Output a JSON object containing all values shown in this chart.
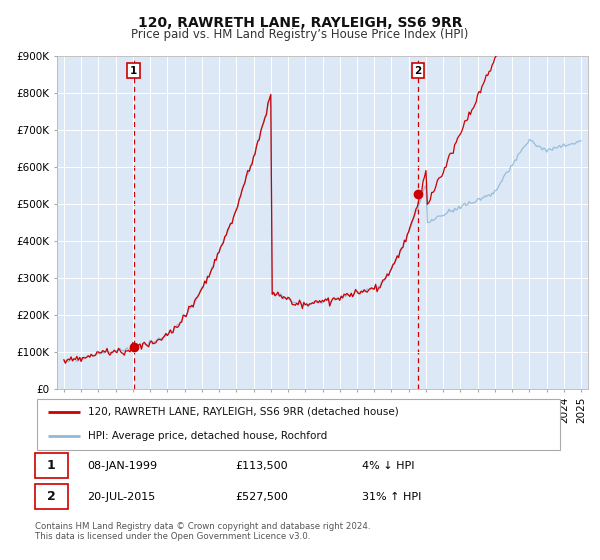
{
  "title": "120, RAWRETH LANE, RAYLEIGH, SS6 9RR",
  "subtitle": "Price paid vs. HM Land Registry’s House Price Index (HPI)",
  "ylim": [
    0,
    900000
  ],
  "yticks": [
    0,
    100000,
    200000,
    300000,
    400000,
    500000,
    600000,
    700000,
    800000,
    900000
  ],
  "ytick_labels": [
    "£0",
    "£100K",
    "£200K",
    "£300K",
    "£400K",
    "£500K",
    "£600K",
    "£700K",
    "£800K",
    "£900K"
  ],
  "sale1_year": 1999.05,
  "sale1_price": 113500,
  "sale1_label": "1",
  "sale1_date": "08-JAN-1999",
  "sale1_price_str": "£113,500",
  "sale1_note": "4% ↓ HPI",
  "sale2_year": 2015.54,
  "sale2_price": 527500,
  "sale2_label": "2",
  "sale2_date": "20-JUL-2015",
  "sale2_price_str": "£527,500",
  "sale2_note": "31% ↑ HPI",
  "line1_color": "#cc0000",
  "line2_color": "#90b8d8",
  "marker_color": "#cc0000",
  "vline_color": "#cc0000",
  "legend_line1": "120, RAWRETH LANE, RAYLEIGH, SS6 9RR (detached house)",
  "legend_line2": "HPI: Average price, detached house, Rochford",
  "footnote": "Contains HM Land Registry data © Crown copyright and database right 2024.\nThis data is licensed under the Open Government Licence v3.0.",
  "background_color": "#ffffff",
  "chart_bg_color": "#dce8f5",
  "grid_color": "#ffffff",
  "title_fontsize": 10,
  "subtitle_fontsize": 8.5,
  "axis_fontsize": 7.5
}
